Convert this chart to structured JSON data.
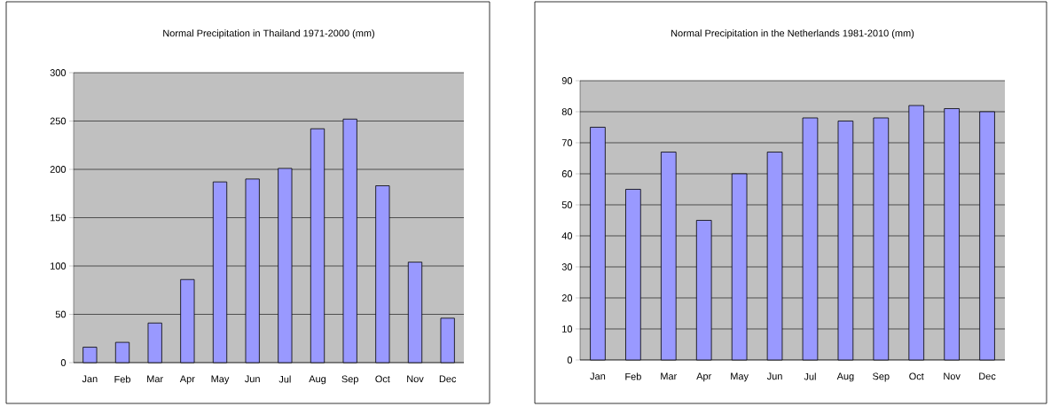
{
  "chart_data": [
    {
      "type": "bar",
      "title": "Normal Precipitation in Thailand 1971-2000 (mm)",
      "categories": [
        "Jan",
        "Feb",
        "Mar",
        "Apr",
        "May",
        "Jun",
        "Jul",
        "Aug",
        "Sep",
        "Oct",
        "Nov",
        "Dec"
      ],
      "values": [
        16,
        21,
        41,
        86,
        187,
        190,
        201,
        242,
        252,
        183,
        104,
        46
      ],
      "color": "#9999ff",
      "ylim": [
        0,
        300
      ],
      "yticks": [
        0,
        50,
        100,
        150,
        200,
        250,
        300
      ],
      "grid": "y"
    },
    {
      "type": "bar",
      "title": "Normal Precipitation in the Netherlands 1981-2010 (mm)",
      "categories": [
        "Jan",
        "Feb",
        "Mar",
        "Apr",
        "May",
        "Jun",
        "Jul",
        "Aug",
        "Sep",
        "Oct",
        "Nov",
        "Dec"
      ],
      "values": [
        75,
        55,
        67,
        45,
        60,
        67,
        78,
        77,
        78,
        82,
        81,
        80
      ],
      "color": "#9999ff",
      "ylim": [
        0,
        90
      ],
      "yticks": [
        0,
        10,
        20,
        30,
        40,
        50,
        60,
        70,
        80,
        90
      ],
      "grid": "y"
    }
  ]
}
